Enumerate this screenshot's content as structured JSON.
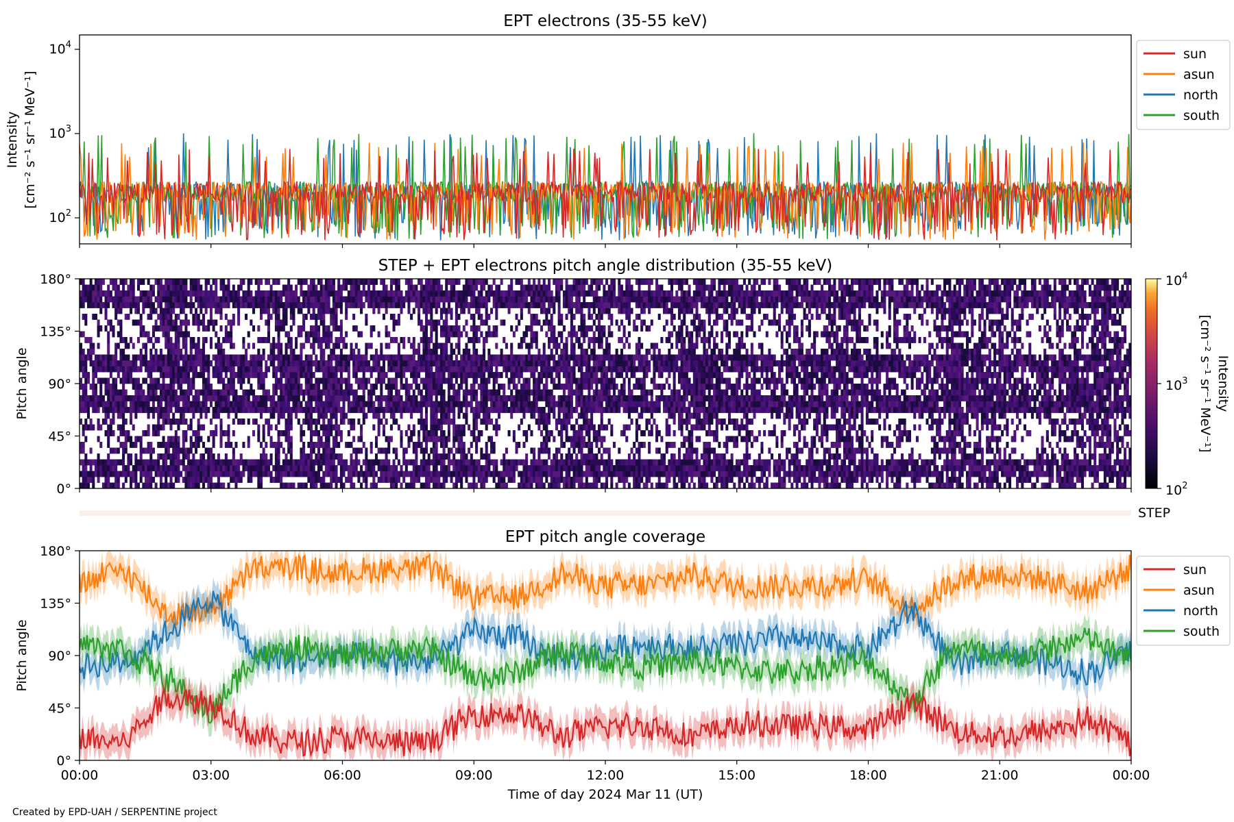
{
  "credit": "Created by EPD-UAH / SERPENTINE project",
  "colors": {
    "sun": "#d62728",
    "asun": "#ff7f0e",
    "north": "#1f77b4",
    "south": "#2ca02c",
    "step_band": "#fdeee6"
  },
  "legend": {
    "sun": "sun",
    "asun": "asun",
    "north": "north",
    "south": "south"
  },
  "ticks": {
    "time": [
      "00:00",
      "03:00",
      "06:00",
      "09:00",
      "12:00",
      "15:00",
      "18:00",
      "21:00",
      "00:00"
    ],
    "pitch": [
      "0°",
      "45°",
      "90°",
      "135°",
      "180°"
    ],
    "intensity_base": "10",
    "intensity_exp": [
      "2",
      "3",
      "4"
    ]
  },
  "x_axis_label": "Time of day 2024 Mar 11 (UT)",
  "step_label": "STEP",
  "chart_data": [
    {
      "type": "line",
      "title": "EPT electrons (35-55 keV)",
      "ylabel": [
        "Intensity",
        "[cm⁻² s⁻¹ sr⁻¹ MeV⁻¹]"
      ],
      "yscale": "log",
      "ylim": [
        50,
        14000
      ],
      "xlim_hours": [
        0,
        24
      ],
      "legend_position": "right-outside-top",
      "series": [
        {
          "name": "sun",
          "typical_range": [
            60,
            600
          ]
        },
        {
          "name": "asun",
          "typical_range": [
            60,
            700
          ]
        },
        {
          "name": "north",
          "typical_range": [
            50,
            900
          ]
        },
        {
          "name": "south",
          "typical_range": [
            50,
            900
          ]
        }
      ]
    },
    {
      "type": "heatmap",
      "title": "STEP + EPT electrons pitch angle distribution (35-55 keV)",
      "ylabel": "Pitch angle",
      "ylim": [
        0,
        180
      ],
      "colorbar": {
        "label": [
          "Intensity",
          "[cm⁻² s⁻¹ sr⁻¹ MeV⁻¹]"
        ],
        "scale": "log",
        "range": [
          100,
          10000
        ],
        "colormap": "inferno"
      },
      "value_range_observed": [
        100,
        400
      ]
    },
    {
      "type": "line",
      "title": "EPT pitch angle coverage",
      "ylabel": "Pitch angle",
      "ylim": [
        0,
        180
      ],
      "legend_position": "right-outside-top",
      "shaded_bands": true,
      "time_hours": [
        0,
        1,
        2,
        3,
        4,
        5,
        6,
        7,
        8,
        9,
        10,
        11,
        12,
        13,
        14,
        15,
        16,
        17,
        18,
        19,
        20,
        21,
        22,
        23,
        24
      ],
      "series": [
        {
          "name": "sun",
          "values": [
            20,
            15,
            55,
            50,
            20,
            15,
            20,
            15,
            15,
            40,
            40,
            20,
            30,
            30,
            20,
            30,
            30,
            30,
            25,
            50,
            25,
            20,
            25,
            35,
            15
          ]
        },
        {
          "name": "asun",
          "values": [
            150,
            165,
            125,
            130,
            165,
            165,
            160,
            165,
            165,
            140,
            140,
            160,
            150,
            150,
            160,
            150,
            150,
            150,
            155,
            130,
            155,
            160,
            155,
            145,
            165
          ]
        },
        {
          "name": "north",
          "values": [
            80,
            85,
            110,
            140,
            90,
            85,
            90,
            85,
            85,
            110,
            105,
            85,
            95,
            100,
            95,
            100,
            105,
            100,
            95,
            130,
            80,
            95,
            85,
            75,
            95
          ]
        },
        {
          "name": "south",
          "values": [
            100,
            95,
            70,
            40,
            90,
            95,
            90,
            95,
            95,
            70,
            75,
            95,
            85,
            80,
            85,
            80,
            75,
            80,
            85,
            50,
            100,
            85,
            95,
            105,
            85
          ]
        }
      ]
    }
  ]
}
